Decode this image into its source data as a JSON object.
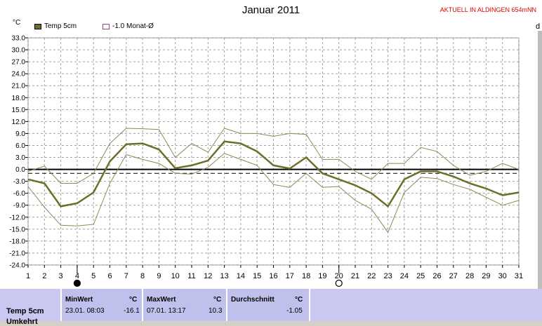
{
  "header": {
    "title": "Januar 2011",
    "location": "AKTUELL IN ALDINGEN 654mNN",
    "unit_left": "°C",
    "unit_right": "d"
  },
  "legend": {
    "temp_label": "Temp 5cm",
    "avg_label": "-1.0 Monat-Ø"
  },
  "colors": {
    "main_line": "#6e6e2a",
    "thin_line": "#8a8a56",
    "zero_line": "#000000",
    "grid": "#a0a0a0",
    "footer_bg": "#c0c0ec"
  },
  "chart_data": {
    "type": "line",
    "title": "Januar 2011",
    "ylabel": "°C",
    "ylim": [
      -24,
      33
    ],
    "yticks": [
      "33.0",
      "30.0",
      "27.0",
      "24.0",
      "21.0",
      "18.0",
      "15.0",
      "12.0",
      "9.0",
      "6.0",
      "3.0",
      "0.0",
      "-3.0",
      "-6.0",
      "-9.0",
      "-12.0",
      "-15.0",
      "-18.0",
      "-21.0",
      "-24.0"
    ],
    "x": [
      1,
      2,
      3,
      4,
      5,
      6,
      7,
      8,
      9,
      10,
      11,
      12,
      13,
      14,
      15,
      16,
      17,
      18,
      19,
      20,
      21,
      22,
      23,
      24,
      25,
      26,
      27,
      28,
      29,
      30,
      31
    ],
    "reference_line": -1.0,
    "grid": true,
    "series": [
      {
        "name": "Temp 5cm",
        "role": "mean",
        "values": [
          -2.5,
          -3.5,
          -9.3,
          -8.5,
          -5.8,
          2.0,
          6.3,
          6.5,
          5.0,
          0.3,
          1.0,
          2.2,
          7.0,
          6.5,
          4.5,
          1.0,
          0.2,
          3.0,
          -1.0,
          -2.5,
          -4.0,
          -6.0,
          -9.3,
          -2.5,
          -0.5,
          -0.5,
          -1.8,
          -3.5,
          -4.8,
          -6.5,
          -5.8
        ]
      },
      {
        "role": "max",
        "values": [
          -0.5,
          0.8,
          -3.5,
          -3.5,
          -1.0,
          6.5,
          10.3,
          10.2,
          10.0,
          3.0,
          6.5,
          4.3,
          10.3,
          9.0,
          9.0,
          8.3,
          9.0,
          8.8,
          2.5,
          2.5,
          -0.5,
          -2.5,
          1.5,
          1.5,
          5.5,
          4.5,
          1.0,
          -1.5,
          -0.5,
          1.5,
          0.0
        ]
      },
      {
        "role": "min",
        "values": [
          -4.3,
          -9.5,
          -14.0,
          -14.2,
          -13.8,
          -3.5,
          3.7,
          2.5,
          1.5,
          -1.0,
          -1.2,
          0.5,
          4.0,
          2.5,
          1.0,
          -3.8,
          -4.5,
          -1.0,
          -4.5,
          -4.3,
          -7.8,
          -10.0,
          -15.8,
          -5.8,
          -2.0,
          -2.3,
          -3.8,
          -5.0,
          -7.0,
          -9.0,
          -7.8
        ]
      }
    ]
  },
  "markers": [
    {
      "day": 4,
      "name": "new-moon-icon"
    },
    {
      "day": 20,
      "name": "full-moon-icon"
    }
  ],
  "stats": {
    "row_label": "Temp 5cm",
    "min_header": "MinWert",
    "max_header": "MaxWert",
    "avg_header": "Durchschnitt",
    "unit": "°C",
    "min_time": "23.01.  08:03",
    "min_value": "-16.1",
    "max_time": "07.01.  13:17",
    "max_value": "10.3",
    "avg_value": "-1.05"
  }
}
